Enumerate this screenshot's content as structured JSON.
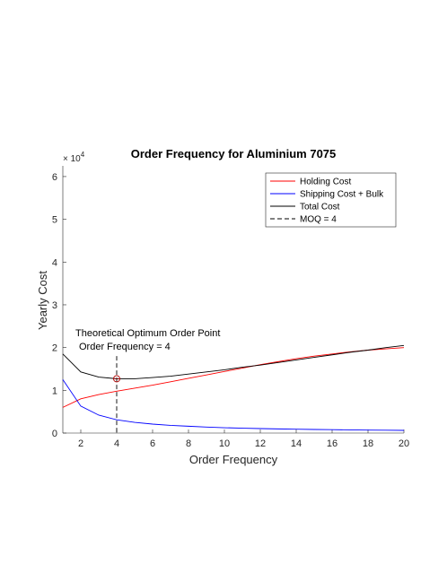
{
  "chart_data": {
    "type": "line",
    "title": "Order Frequency for Aluminium 7075",
    "xlabel": "Order Frequency",
    "ylabel": "Yearly Cost",
    "y_exponent_base": "× 10",
    "y_exponent_power": "4",
    "xlim": [
      1,
      20
    ],
    "ylim": [
      0,
      6.25
    ],
    "x_ticks": [
      2,
      4,
      6,
      8,
      10,
      12,
      14,
      16,
      18,
      20
    ],
    "y_ticks": [
      0,
      1,
      2,
      3,
      4,
      5,
      6
    ],
    "x": [
      1,
      2,
      3,
      4,
      5,
      6,
      7,
      8,
      9,
      10,
      11,
      12,
      13,
      14,
      15,
      16,
      17,
      18,
      19,
      20
    ],
    "series": [
      {
        "name": "Holding Cost",
        "color": "#ff0000",
        "values": [
          0.6,
          0.8,
          0.9,
          0.98,
          1.05,
          1.12,
          1.2,
          1.28,
          1.36,
          1.44,
          1.52,
          1.6,
          1.67,
          1.74,
          1.8,
          1.85,
          1.9,
          1.94,
          1.97,
          2.0
        ]
      },
      {
        "name": "Shipping Cost + Bulk",
        "color": "#0000ff",
        "values": [
          1.25,
          0.63,
          0.42,
          0.31,
          0.25,
          0.21,
          0.18,
          0.16,
          0.14,
          0.125,
          0.115,
          0.105,
          0.097,
          0.09,
          0.084,
          0.079,
          0.074,
          0.07,
          0.066,
          0.063
        ]
      },
      {
        "name": "Total Cost",
        "color": "#000000",
        "values": [
          1.85,
          1.43,
          1.31,
          1.27,
          1.27,
          1.3,
          1.33,
          1.38,
          1.43,
          1.48,
          1.54,
          1.59,
          1.65,
          1.71,
          1.77,
          1.83,
          1.89,
          1.94,
          2.0,
          2.05
        ]
      }
    ],
    "vline": {
      "name": "MOQ = 4",
      "x": 4,
      "y_top": 1.8,
      "style": "dashed",
      "color": "#000000"
    },
    "optimum_marker": {
      "x": 4,
      "y": 1.27
    },
    "annotation": {
      "line1": "Theoretical Optimum Order Point",
      "line2": "Order Frequency = 4",
      "x": 4,
      "y": 2.15
    },
    "legend_position": "top-right",
    "grid": false
  }
}
